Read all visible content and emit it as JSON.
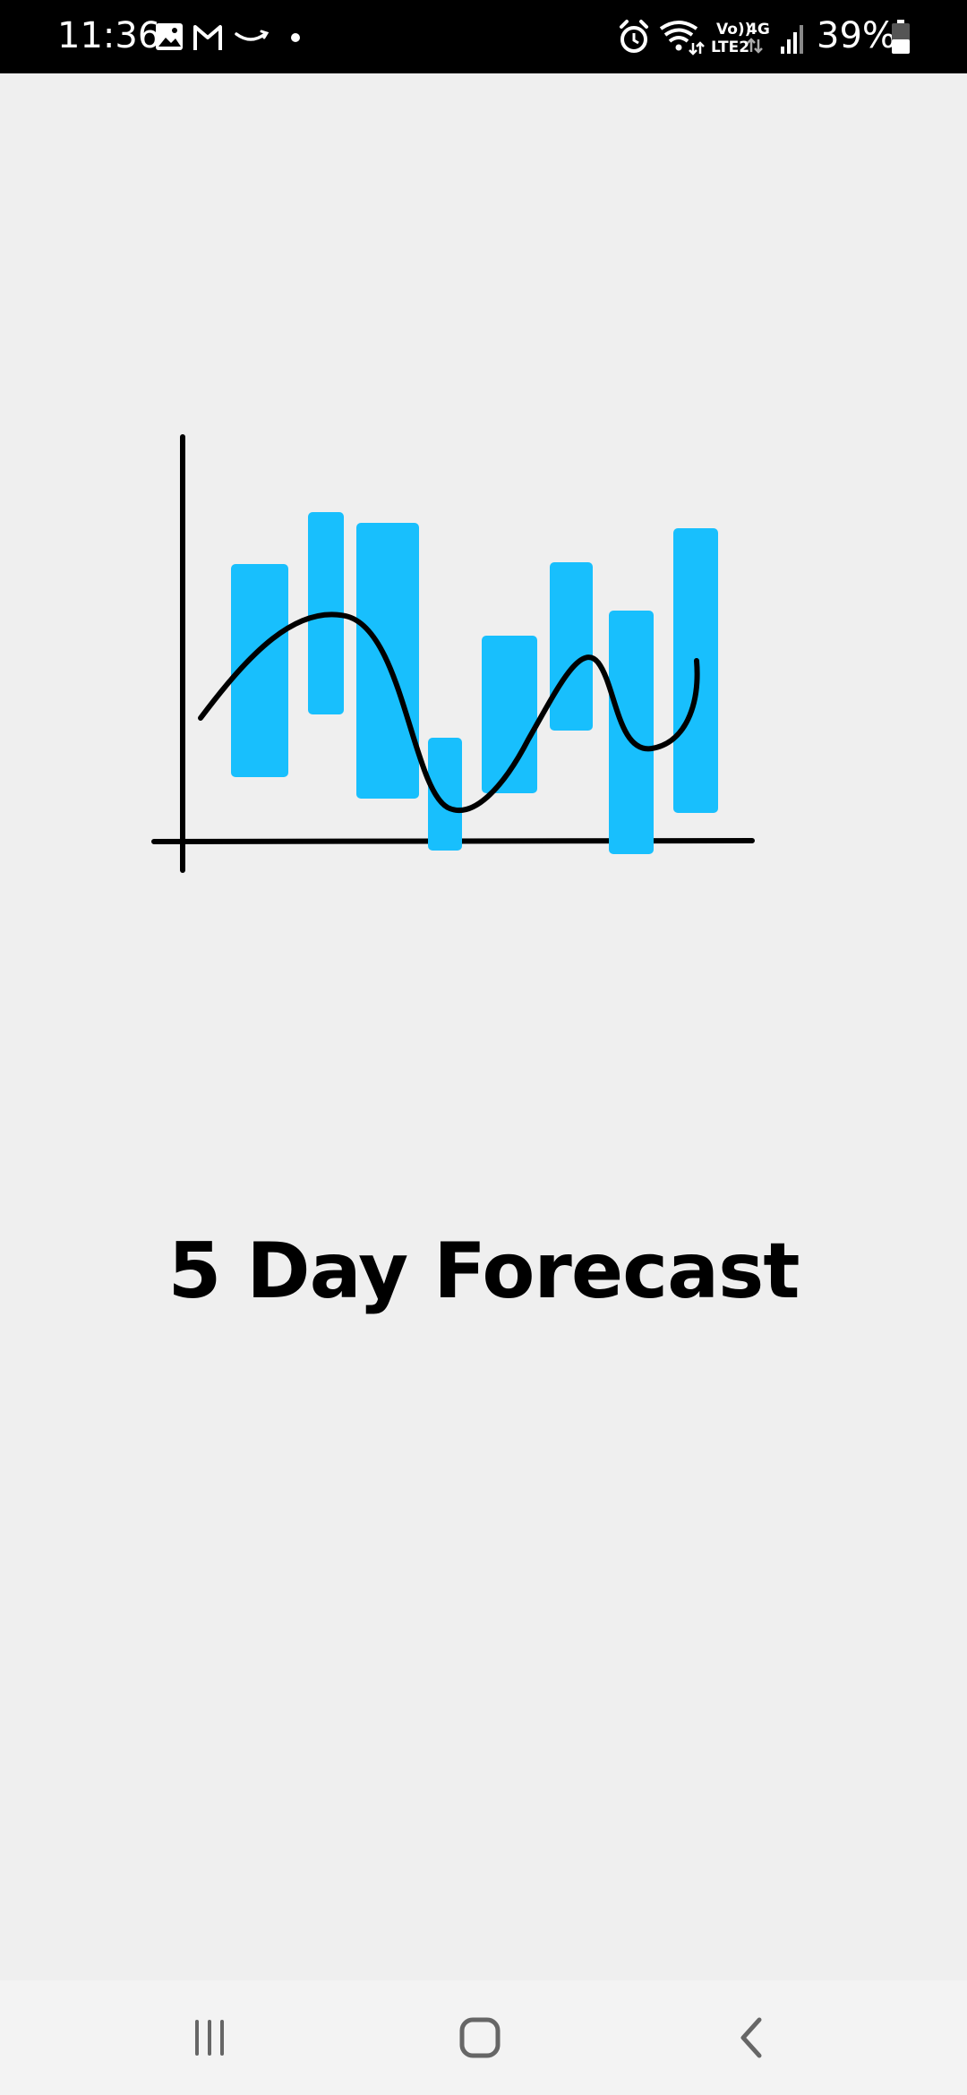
{
  "status_bar": {
    "time": "11:36",
    "battery_percent": "39%",
    "volte_top": "Vo))",
    "volte_bottom": "LTE2",
    "network_type": "4G",
    "left_icons": [
      "gallery-icon",
      "gmail-icon",
      "amazon-icon",
      "dot-icon"
    ],
    "right_icons": [
      "alarm-icon",
      "wifi-icon",
      "volte-icon",
      "network-4g-icon",
      "signal-icon",
      "battery-icon"
    ]
  },
  "main": {
    "title": "5 Day Forecast",
    "illustration": "forecast-chart-illustration",
    "bar_color": "#18bffd",
    "line_color": "#000000"
  },
  "nav_bar": {
    "buttons": [
      "recent-apps-button",
      "home-button",
      "back-button"
    ]
  }
}
